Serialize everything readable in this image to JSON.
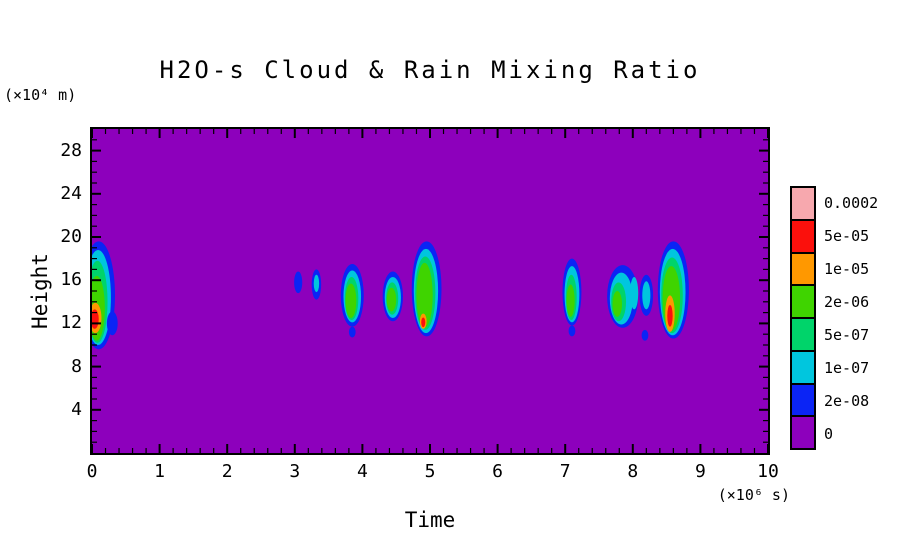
{
  "title": "H2O-s Cloud & Rain Mixing Ratio",
  "axes": {
    "ylabel": "Height",
    "y_unit": "(×10⁴ m)",
    "xlabel": "Time",
    "x_unit": "(×10⁶ s)"
  },
  "colorbar": {
    "entries": [
      {
        "label": "0.0002",
        "color": "#f7a8ae"
      },
      {
        "label": "5e-05",
        "color": "#fb100c"
      },
      {
        "label": "1e-05",
        "color": "#ff9800"
      },
      {
        "label": "2e-06",
        "color": "#3fd400"
      },
      {
        "label": "5e-07",
        "color": "#00d46a"
      },
      {
        "label": "1e-07",
        "color": "#00c6de"
      },
      {
        "label": "2e-08",
        "color": "#0b24f5"
      },
      {
        "label": "0",
        "color": "#8d00bc"
      }
    ]
  },
  "chart_data": {
    "type": "heatmap",
    "title": "H2O-s Cloud & Rain Mixing Ratio",
    "xlabel": "Time (×10⁶ s)",
    "ylabel": "Height (×10⁴ m)",
    "xlim": [
      0,
      10
    ],
    "ylim": [
      0,
      30
    ],
    "x_ticks": [
      0,
      1,
      2,
      3,
      4,
      5,
      6,
      7,
      8,
      9,
      10
    ],
    "y_ticks": [
      4,
      8,
      12,
      16,
      20,
      24,
      28
    ],
    "grid": false,
    "legend_position": "right-colorbar",
    "levels_ascending": [
      "0",
      "2e-08",
      "1e-07",
      "5e-07",
      "2e-06",
      "1e-05",
      "5e-05",
      "0.0002"
    ],
    "background_level": "0",
    "clouds": [
      {
        "name": "cloud-t0.1",
        "layers": [
          {
            "level": "2e-08",
            "t": 0.1,
            "h": 14.6,
            "rt": 0.24,
            "rh": 5.0
          },
          {
            "level": "1e-07",
            "t": 0.09,
            "h": 14.4,
            "rt": 0.19,
            "rh": 4.4
          },
          {
            "level": "5e-07",
            "t": 0.08,
            "h": 14.0,
            "rt": 0.15,
            "rh": 3.8
          },
          {
            "level": "2e-06",
            "t": 0.07,
            "h": 13.4,
            "rt": 0.12,
            "rh": 3.0
          },
          {
            "level": "1e-05",
            "t": 0.05,
            "h": 12.5,
            "rt": 0.09,
            "rh": 1.4
          },
          {
            "level": "5e-05",
            "t": 0.04,
            "h": 12.4,
            "rt": 0.06,
            "rh": 0.9
          },
          {
            "level": "2e-08",
            "t": 0.3,
            "h": 12.0,
            "rt": 0.08,
            "rh": 1.1
          }
        ]
      },
      {
        "name": "cloud-t3.05",
        "layers": [
          {
            "level": "2e-08",
            "t": 3.05,
            "h": 15.8,
            "rt": 0.06,
            "rh": 1.0
          }
        ]
      },
      {
        "name": "cloud-t3.3",
        "layers": [
          {
            "level": "2e-08",
            "t": 3.32,
            "h": 15.6,
            "rt": 0.07,
            "rh": 1.4
          },
          {
            "level": "1e-07",
            "t": 3.32,
            "h": 15.7,
            "rt": 0.04,
            "rh": 0.8
          }
        ]
      },
      {
        "name": "cloud-t3.85",
        "layers": [
          {
            "level": "2e-08",
            "t": 3.85,
            "h": 14.6,
            "rt": 0.17,
            "rh": 2.9
          },
          {
            "level": "1e-07",
            "t": 3.85,
            "h": 14.5,
            "rt": 0.13,
            "rh": 2.4
          },
          {
            "level": "5e-07",
            "t": 3.84,
            "h": 14.3,
            "rt": 0.1,
            "rh": 2.0
          },
          {
            "level": "2e-06",
            "t": 3.83,
            "h": 14.1,
            "rt": 0.08,
            "rh": 1.6
          },
          {
            "level": "2e-08",
            "t": 3.85,
            "h": 11.2,
            "rt": 0.05,
            "rh": 0.5
          }
        ]
      },
      {
        "name": "cloud-t4.45",
        "layers": [
          {
            "level": "2e-08",
            "t": 4.45,
            "h": 14.5,
            "rt": 0.15,
            "rh": 2.3
          },
          {
            "level": "1e-07",
            "t": 4.45,
            "h": 14.4,
            "rt": 0.12,
            "rh": 1.9
          },
          {
            "level": "5e-07",
            "t": 4.44,
            "h": 14.3,
            "rt": 0.09,
            "rh": 1.5
          },
          {
            "level": "2e-06",
            "t": 4.43,
            "h": 14.2,
            "rt": 0.07,
            "rh": 1.1
          }
        ]
      },
      {
        "name": "cloud-t4.95",
        "layers": [
          {
            "level": "2e-08",
            "t": 4.95,
            "h": 15.2,
            "rt": 0.22,
            "rh": 4.4
          },
          {
            "level": "1e-07",
            "t": 4.94,
            "h": 15.0,
            "rt": 0.18,
            "rh": 3.9
          },
          {
            "level": "5e-07",
            "t": 4.93,
            "h": 14.8,
            "rt": 0.15,
            "rh": 3.4
          },
          {
            "level": "2e-06",
            "t": 4.92,
            "h": 14.6,
            "rt": 0.12,
            "rh": 3.0
          },
          {
            "level": "1e-05",
            "t": 4.9,
            "h": 12.2,
            "rt": 0.05,
            "rh": 0.7
          },
          {
            "level": "5e-05",
            "t": 4.9,
            "h": 12.1,
            "rt": 0.03,
            "rh": 0.45
          }
        ]
      },
      {
        "name": "cloud-t7.1",
        "layers": [
          {
            "level": "2e-08",
            "t": 7.1,
            "h": 14.9,
            "rt": 0.14,
            "rh": 3.1
          },
          {
            "level": "1e-07",
            "t": 7.1,
            "h": 14.7,
            "rt": 0.11,
            "rh": 2.6
          },
          {
            "level": "5e-07",
            "t": 7.09,
            "h": 14.4,
            "rt": 0.08,
            "rh": 2.1
          },
          {
            "level": "2e-06",
            "t": 7.08,
            "h": 14.1,
            "rt": 0.06,
            "rh": 1.5
          },
          {
            "level": "2e-08",
            "t": 7.1,
            "h": 11.3,
            "rt": 0.05,
            "rh": 0.5
          }
        ]
      },
      {
        "name": "cloud-t7.85",
        "layers": [
          {
            "level": "2e-08",
            "t": 7.85,
            "h": 14.5,
            "rt": 0.23,
            "rh": 2.9
          },
          {
            "level": "1e-07",
            "t": 7.83,
            "h": 14.3,
            "rt": 0.17,
            "rh": 2.4
          },
          {
            "level": "5e-07",
            "t": 7.79,
            "h": 14.0,
            "rt": 0.11,
            "rh": 1.8
          },
          {
            "level": "2e-06",
            "t": 7.77,
            "h": 13.8,
            "rt": 0.07,
            "rh": 1.2
          },
          {
            "level": "1e-07",
            "t": 8.02,
            "h": 14.8,
            "rt": 0.06,
            "rh": 1.5
          }
        ]
      },
      {
        "name": "cloud-t8.2",
        "layers": [
          {
            "level": "2e-08",
            "t": 8.2,
            "h": 14.6,
            "rt": 0.1,
            "rh": 1.9
          },
          {
            "level": "1e-07",
            "t": 8.2,
            "h": 14.6,
            "rt": 0.06,
            "rh": 1.3
          },
          {
            "level": "2e-08",
            "t": 8.18,
            "h": 10.9,
            "rt": 0.05,
            "rh": 0.5
          }
        ]
      },
      {
        "name": "cloud-t8.6",
        "layers": [
          {
            "level": "2e-08",
            "t": 8.6,
            "h": 15.1,
            "rt": 0.23,
            "rh": 4.5
          },
          {
            "level": "1e-07",
            "t": 8.59,
            "h": 14.9,
            "rt": 0.19,
            "rh": 4.0
          },
          {
            "level": "5e-07",
            "t": 8.58,
            "h": 14.6,
            "rt": 0.16,
            "rh": 3.5
          },
          {
            "level": "2e-06",
            "t": 8.57,
            "h": 14.3,
            "rt": 0.13,
            "rh": 3.0
          },
          {
            "level": "1e-05",
            "t": 8.55,
            "h": 12.9,
            "rt": 0.07,
            "rh": 1.7
          },
          {
            "level": "5e-05",
            "t": 8.55,
            "h": 12.7,
            "rt": 0.04,
            "rh": 1.0
          }
        ]
      }
    ]
  }
}
